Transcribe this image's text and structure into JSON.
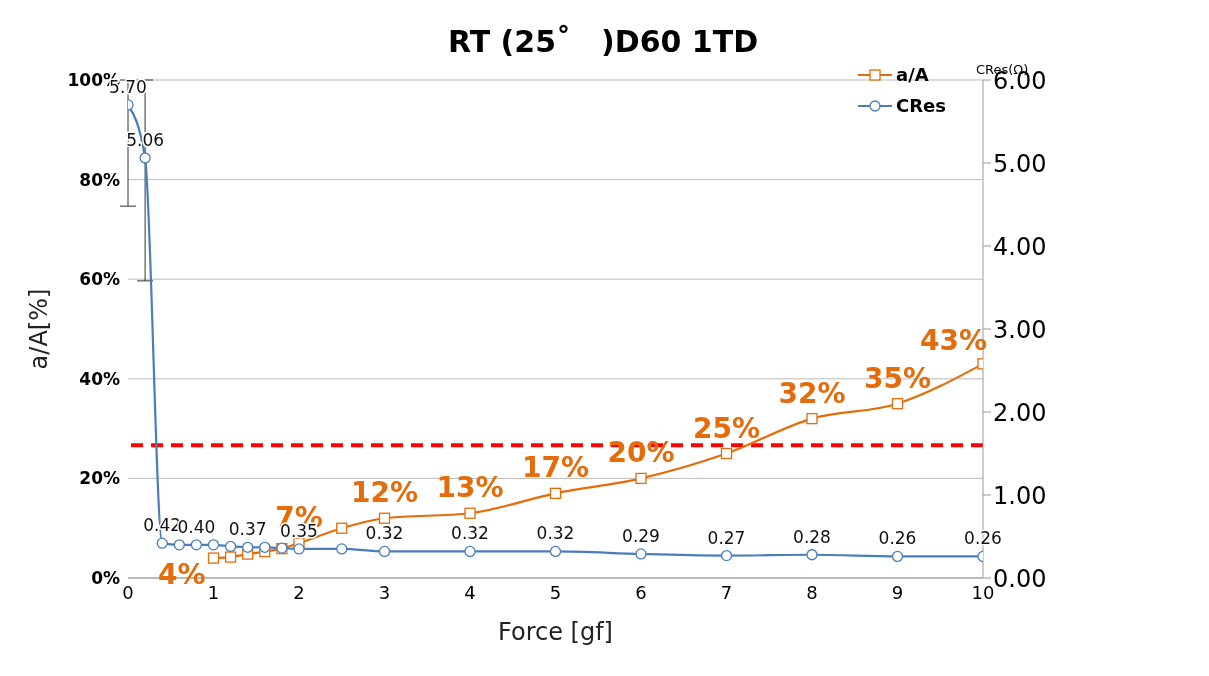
{
  "chart_data": {
    "type": "line",
    "title": "RT (25˚　)D60  1TD",
    "xlabel": "Force [gf]",
    "ylabel": "a/A[%]",
    "y2label": "CRes(Ω)",
    "xlim": [
      0,
      10
    ],
    "xticks": [
      0,
      1,
      2,
      3,
      4,
      5,
      6,
      7,
      8,
      9,
      10
    ],
    "ylim": [
      0,
      100
    ],
    "yticks": [
      {
        "value": 0,
        "label": "0%"
      },
      {
        "value": 20,
        "label": "20%"
      },
      {
        "value": 40,
        "label": "40%"
      },
      {
        "value": 60,
        "label": "60%"
      },
      {
        "value": 80,
        "label": "80%"
      },
      {
        "value": 100,
        "label": "100%"
      }
    ],
    "y2lim": [
      0,
      6
    ],
    "y2ticks": [
      {
        "value": 0,
        "label": "0.00"
      },
      {
        "value": 1,
        "label": "1.00"
      },
      {
        "value": 2,
        "label": "2.00"
      },
      {
        "value": 3,
        "label": "3.00"
      },
      {
        "value": 4,
        "label": "4.00"
      },
      {
        "value": 5,
        "label": "5.00"
      },
      {
        "value": 6,
        "label": "6.00"
      }
    ],
    "grid": "y",
    "legend": "top right",
    "line_style": "solid",
    "ref_lines": [
      {
        "axis": "y2",
        "value": 1.6,
        "color": "#ff0000",
        "line_style": "dashed"
      }
    ],
    "series": [
      {
        "name": "a/A",
        "color": "#e46c0a",
        "marker": "square",
        "x": [
          1,
          1.2,
          1.4,
          1.6,
          1.8,
          2,
          2.5,
          3,
          4,
          5,
          6,
          7,
          8,
          9,
          10
        ],
        "values": [
          4,
          4.2,
          4.8,
          5.3,
          5.9,
          7,
          10,
          12,
          13,
          17,
          20,
          25,
          32,
          35,
          43
        ],
        "value_labels": [
          "4%",
          null,
          null,
          null,
          null,
          "7%",
          null,
          "12%",
          "13%",
          "17%",
          "20%",
          "25%",
          "32%",
          "35%",
          "43%"
        ]
      },
      {
        "name": "CRes",
        "color": "#4a7ebb",
        "marker": "circle",
        "axis": "y2",
        "x": [
          0,
          0.2,
          0.4,
          0.6,
          0.8,
          1,
          1.2,
          1.4,
          1.6,
          1.8,
          2,
          2.5,
          3,
          4,
          5,
          6,
          7,
          8,
          9,
          10
        ],
        "values": [
          5.7,
          5.06,
          0.42,
          0.4,
          0.4,
          0.4,
          0.38,
          0.37,
          0.37,
          0.36,
          0.35,
          0.35,
          0.32,
          0.32,
          0.32,
          0.29,
          0.27,
          0.28,
          0.26,
          0.26
        ],
        "value_labels": [
          "5.70",
          "5.06",
          "0.42",
          null,
          "0.40",
          null,
          null,
          "0.37",
          null,
          null,
          "0.35",
          null,
          "0.32",
          "0.32",
          "0.32",
          "0.29",
          "0.27",
          "0.28",
          "0.26",
          "0.26"
        ],
        "errors": [
          [
            4.48,
            6.0
          ],
          [
            3.58,
            6.0
          ],
          null,
          null,
          null,
          null,
          null,
          null,
          null,
          null,
          null,
          null,
          null,
          null,
          null,
          null,
          null,
          null,
          null,
          null
        ]
      }
    ]
  }
}
